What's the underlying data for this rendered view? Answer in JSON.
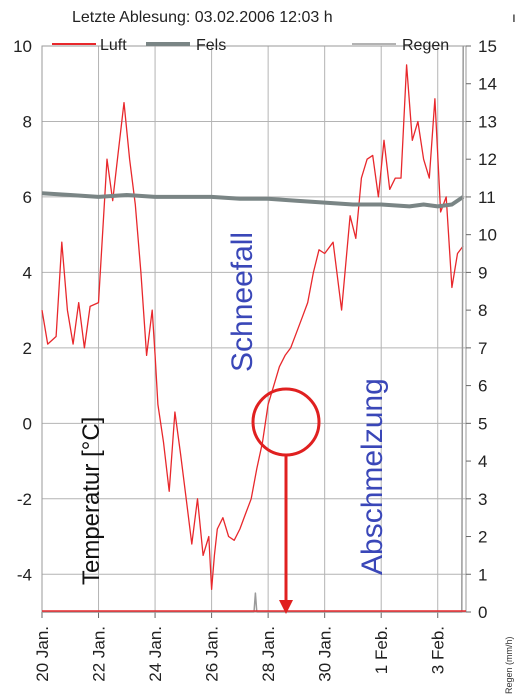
{
  "header": {
    "reading": "Letzte Ablesung: 03.02.2006 12:03 h",
    "corner_mark": "ı"
  },
  "legend": {
    "luft": "Luft",
    "fels": "Fels",
    "regen": "Regen"
  },
  "axes": {
    "left_ticks": [
      "10",
      "8",
      "6",
      "4",
      "2",
      "0",
      "-2",
      "-4"
    ],
    "right_ticks": [
      "15",
      "14",
      "13",
      "12",
      "11",
      "10",
      "9",
      "8",
      "7",
      "6",
      "5",
      "4",
      "3",
      "2",
      "1",
      "0"
    ],
    "x_ticks": [
      "20 Jan.",
      "22 Jan.",
      "24 Jan.",
      "26 Jan.",
      "28 Jan.",
      "30 Jan.",
      "1 Feb.",
      "3 Feb."
    ],
    "ylabel": "Temperatur [°C]",
    "y2label": "Regen (mm/h)"
  },
  "annotations": {
    "schneefall": "Schneefall",
    "abschmelzung": "Abschmelzung"
  },
  "colors": {
    "luft": "#e8282c",
    "fels": "#7a8585",
    "regen": "#9a9a9a",
    "annotation": "#3a47b8",
    "marker": "#e02020"
  },
  "chart_data": {
    "type": "line",
    "x_unit": "days (0 = 20 Jan.)",
    "x_ticks": [
      0,
      2,
      4,
      6,
      8,
      10,
      12,
      14
    ],
    "ylim": [
      -5,
      10
    ],
    "y2lim": [
      0,
      15
    ],
    "grid": true,
    "legend_position": "top",
    "series": [
      {
        "name": "Luft",
        "axis": "left",
        "x": [
          0,
          0.2,
          0.5,
          0.7,
          0.9,
          1.1,
          1.3,
          1.5,
          1.7,
          2.0,
          2.3,
          2.5,
          2.7,
          2.9,
          3.1,
          3.3,
          3.5,
          3.7,
          3.9,
          4.0,
          4.1,
          4.3,
          4.5,
          4.7,
          4.9,
          5.1,
          5.3,
          5.5,
          5.7,
          5.9,
          6.0,
          6.1,
          6.2,
          6.4,
          6.6,
          6.8,
          7.0,
          7.2,
          7.4,
          7.6,
          7.8,
          8.0,
          8.2,
          8.4,
          8.6,
          8.8,
          9.0,
          9.2,
          9.4,
          9.6,
          9.8,
          10.0,
          10.3,
          10.6,
          10.9,
          11.1,
          11.3,
          11.5,
          11.7,
          11.9,
          12.1,
          12.3,
          12.5,
          12.7,
          12.9,
          13.1,
          13.3,
          13.5,
          13.7,
          13.9,
          14.1,
          14.3,
          14.5,
          14.7,
          14.9
        ],
        "y": [
          3.0,
          2.1,
          2.3,
          4.8,
          3.0,
          2.1,
          3.2,
          2.0,
          3.1,
          3.2,
          7.0,
          5.9,
          7.2,
          8.5,
          7.0,
          5.8,
          4.0,
          1.8,
          3.0,
          1.8,
          0.5,
          -0.5,
          -1.8,
          0.3,
          -0.8,
          -2.0,
          -3.2,
          -2.0,
          -3.5,
          -3.0,
          -4.4,
          -3.5,
          -2.8,
          -2.5,
          -3.0,
          -3.1,
          -2.8,
          -2.4,
          -2.0,
          -1.2,
          -0.5,
          0.5,
          1.0,
          1.5,
          1.8,
          2.0,
          2.4,
          2.8,
          3.2,
          4.0,
          4.6,
          4.5,
          4.8,
          3.0,
          5.5,
          4.9,
          6.5,
          7.0,
          7.1,
          6.0,
          7.5,
          6.2,
          6.5,
          6.5,
          9.5,
          7.5,
          8.0,
          7.0,
          6.5,
          8.6,
          5.6,
          6.0,
          3.6,
          4.5,
          4.7
        ]
      },
      {
        "name": "Fels",
        "axis": "left",
        "x": [
          0,
          1,
          2,
          3,
          4,
          5,
          6,
          7,
          8,
          9,
          10,
          11,
          12,
          13,
          13.5,
          14,
          14.5,
          14.9
        ],
        "y": [
          6.1,
          6.05,
          6.0,
          6.05,
          6.0,
          6.0,
          6.0,
          5.95,
          5.95,
          5.9,
          5.85,
          5.8,
          5.8,
          5.75,
          5.8,
          5.75,
          5.8,
          6.0
        ]
      },
      {
        "name": "Regen",
        "axis": "right",
        "x": [
          0,
          1,
          2,
          3,
          4,
          5,
          6,
          7,
          7.5,
          7.55,
          7.6,
          8,
          9,
          10,
          11,
          12,
          13,
          14,
          14.85,
          14.9
        ],
        "y": [
          0,
          0,
          0,
          0,
          0,
          0,
          0,
          0,
          0,
          0.5,
          0,
          0,
          0,
          0,
          0,
          0,
          0,
          0,
          0,
          15
        ]
      }
    ]
  }
}
